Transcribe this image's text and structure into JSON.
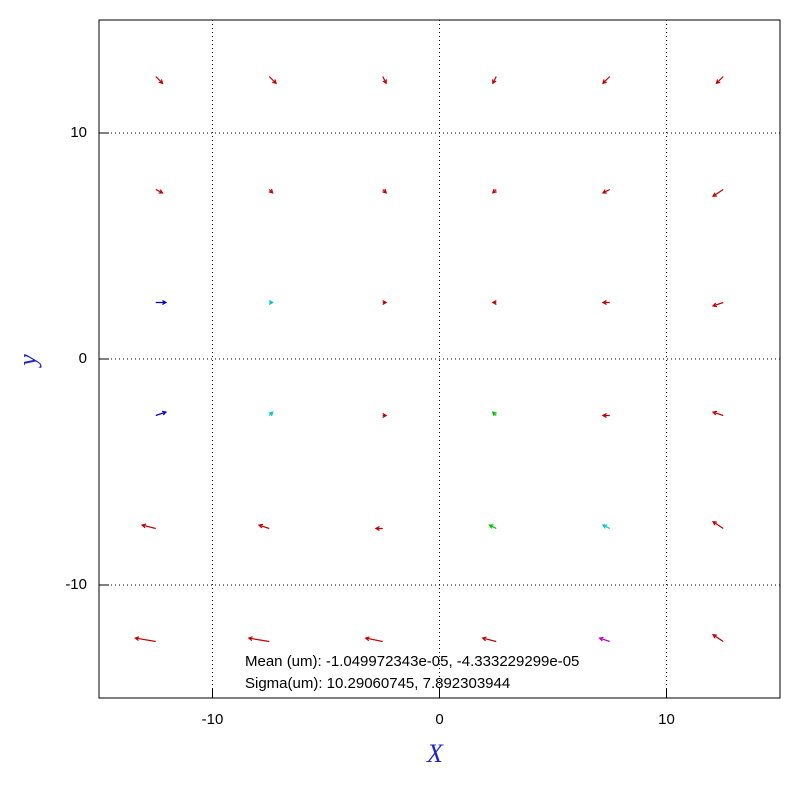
{
  "chart_data": {
    "type": "quiver",
    "x_label": "X",
    "y_label": "y",
    "xlim": [
      -15,
      15
    ],
    "ylim": [
      -15,
      15
    ],
    "xticks": [
      -10,
      0,
      10
    ],
    "yticks": [
      -10,
      0,
      10
    ],
    "grid": true,
    "annotations": [
      "Mean (um): -1.049972343e-05, -4.333229299e-05",
      "Sigma(um): 10.29060745, 7.892303944"
    ],
    "series": [
      {
        "color": "#c00000",
        "x": [
          -12.5,
          -7.5,
          -2.5,
          2.5,
          7.5,
          12.5,
          -12.5,
          -7.5,
          -2.5,
          2.5,
          7.5,
          12.5,
          -2.5,
          2.5,
          7.5,
          12.5,
          -2.5,
          7.5,
          12.5,
          -12.5,
          -7.5,
          -2.5,
          12.5,
          -12.5,
          -7.5,
          -2.5,
          2.5,
          12.5
        ],
        "y": [
          12.5,
          12.5,
          12.5,
          12.5,
          12.5,
          12.5,
          7.5,
          7.5,
          7.5,
          7.5,
          7.5,
          7.5,
          2.5,
          2.5,
          2.5,
          2.5,
          -2.5,
          -2.5,
          -2.5,
          -7.5,
          -7.5,
          -7.5,
          -7.5,
          -12.5,
          -12.5,
          -12.5,
          -12.5,
          -12.5
        ],
        "u": [
          0.2,
          0.2,
          0.1,
          -0.1,
          -0.2,
          -0.2,
          0.2,
          0.1,
          0.1,
          -0.1,
          -0.2,
          -0.3,
          0.1,
          -0.1,
          -0.2,
          -0.3,
          0.1,
          -0.2,
          -0.3,
          -0.4,
          -0.3,
          -0.2,
          -0.3,
          -0.6,
          -0.6,
          -0.5,
          -0.4,
          -0.3
        ],
        "v": [
          -0.2,
          -0.2,
          -0.2,
          -0.2,
          -0.2,
          -0.2,
          -0.1,
          -0.1,
          -0.1,
          -0.1,
          -0.1,
          -0.2,
          0,
          0,
          0,
          -0.1,
          0,
          0,
          0.1,
          0.1,
          0.1,
          0,
          0.2,
          0.1,
          0.1,
          0.1,
          0.1,
          0.2
        ]
      },
      {
        "color": "#00c8c8",
        "x": [
          -7.5,
          -7.5,
          7.5
        ],
        "y": [
          2.5,
          -2.5,
          -7.5
        ],
        "u": [
          0.1,
          0.1,
          -0.2
        ],
        "v": [
          0,
          0.1,
          0.1
        ]
      },
      {
        "color": "#0000c0",
        "x": [
          -12.5,
          -12.5
        ],
        "y": [
          2.5,
          -2.5
        ],
        "u": [
          0.3,
          0.3
        ],
        "v": [
          0,
          0.1
        ]
      },
      {
        "color": "#00c000",
        "x": [
          2.5,
          2.5
        ],
        "y": [
          -2.5,
          -7.5
        ],
        "u": [
          -0.1,
          -0.2
        ],
        "v": [
          0.1,
          0.1
        ]
      },
      {
        "color": "#c000c0",
        "x": [
          7.5
        ],
        "y": [
          -12.5
        ],
        "u": [
          -0.3
        ],
        "v": [
          0.1
        ]
      }
    ]
  }
}
